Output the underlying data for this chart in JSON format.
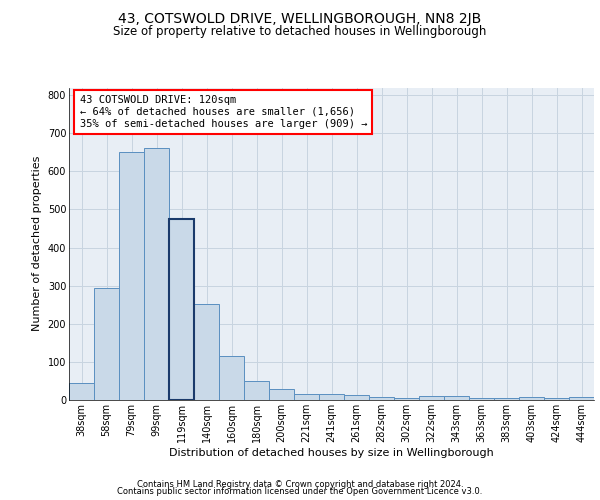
{
  "title": "43, COTSWOLD DRIVE, WELLINGBOROUGH, NN8 2JB",
  "subtitle": "Size of property relative to detached houses in Wellingborough",
  "xlabel": "Distribution of detached houses by size in Wellingborough",
  "ylabel": "Number of detached properties",
  "categories": [
    "38sqm",
    "58sqm",
    "79sqm",
    "99sqm",
    "119sqm",
    "140sqm",
    "160sqm",
    "180sqm",
    "200sqm",
    "221sqm",
    "241sqm",
    "261sqm",
    "282sqm",
    "302sqm",
    "322sqm",
    "343sqm",
    "363sqm",
    "383sqm",
    "403sqm",
    "424sqm",
    "444sqm"
  ],
  "values": [
    45,
    295,
    650,
    660,
    475,
    252,
    115,
    50,
    28,
    15,
    15,
    12,
    8,
    5,
    10,
    10,
    5,
    5,
    8,
    5,
    8
  ],
  "bar_color": "#c9d9e8",
  "bar_edge_color": "#5a8fc0",
  "highlight_bar_index": 4,
  "highlight_bar_color": "#c9d9e8",
  "highlight_bar_edge_color": "#1a3a6b",
  "annotation_text": "43 COTSWOLD DRIVE: 120sqm\n← 64% of detached houses are smaller (1,656)\n35% of semi-detached houses are larger (909) →",
  "annotation_box_color": "white",
  "annotation_box_edge_color": "red",
  "annotation_fontsize": 7.5,
  "ylim": [
    0,
    820
  ],
  "yticks": [
    0,
    100,
    200,
    300,
    400,
    500,
    600,
    700,
    800
  ],
  "grid_color": "#c8d4e0",
  "background_color": "#e8eef5",
  "footer_line1": "Contains HM Land Registry data © Crown copyright and database right 2024.",
  "footer_line2": "Contains public sector information licensed under the Open Government Licence v3.0.",
  "title_fontsize": 10,
  "subtitle_fontsize": 8.5,
  "xlabel_fontsize": 8,
  "ylabel_fontsize": 8,
  "tick_fontsize": 7,
  "footer_fontsize": 6
}
